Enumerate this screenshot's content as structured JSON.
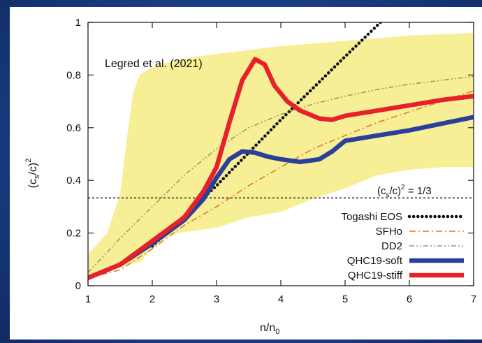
{
  "chart_data": {
    "type": "line",
    "annotation": "Legred et al. (2021)",
    "xlabel": "n/n",
    "xlabel_sub": "0",
    "ylabel_pre": "(c",
    "ylabel_sub": "s",
    "ylabel_post": "/c)",
    "ylabel_sup": "2",
    "xlim": [
      1,
      7
    ],
    "ylim": [
      0,
      1
    ],
    "x_ticks": [
      "1",
      "2",
      "3",
      "4",
      "5",
      "6",
      "7"
    ],
    "y_ticks": [
      "0",
      "0.2",
      "0.4",
      "0.6",
      "0.8",
      "1"
    ],
    "conformal_label_pre": "(c",
    "conformal_label_sub": "s",
    "conformal_label_post": "/c)",
    "conformal_label_sup": "2",
    "conformal_label_tail": " = 1/3",
    "conformal_value": 0.3333,
    "band": {
      "color": "#f7ef96",
      "upper": [
        [
          1.0,
          0.12
        ],
        [
          1.3,
          0.2
        ],
        [
          1.5,
          0.35
        ],
        [
          1.6,
          0.55
        ],
        [
          1.7,
          0.73
        ],
        [
          1.8,
          0.8
        ],
        [
          2.0,
          0.83
        ],
        [
          2.4,
          0.86
        ],
        [
          3.0,
          0.88
        ],
        [
          4.0,
          0.91
        ],
        [
          5.0,
          0.93
        ],
        [
          6.0,
          0.95
        ],
        [
          7.0,
          0.96
        ]
      ],
      "lower": [
        [
          7.0,
          0.45
        ],
        [
          6.5,
          0.45
        ],
        [
          6.0,
          0.44
        ],
        [
          5.5,
          0.42
        ],
        [
          5.0,
          0.37
        ],
        [
          4.5,
          0.33
        ],
        [
          4.0,
          0.28
        ],
        [
          3.5,
          0.26
        ],
        [
          3.0,
          0.22
        ],
        [
          2.7,
          0.21
        ],
        [
          2.4,
          0.2
        ],
        [
          2.2,
          0.18
        ],
        [
          2.0,
          0.14
        ],
        [
          1.8,
          0.09
        ],
        [
          1.5,
          0.07
        ],
        [
          1.3,
          0.05
        ],
        [
          1.0,
          0.03
        ]
      ]
    },
    "series": [
      {
        "name": "Togashi EOS",
        "color": "#111111",
        "style": "dotted",
        "points": [
          [
            2.0,
            0.15
          ],
          [
            3.0,
            0.38
          ],
          [
            4.0,
            0.63
          ],
          [
            5.0,
            0.87
          ],
          [
            5.55,
            1.0
          ]
        ]
      },
      {
        "name": "SFHo",
        "color": "#e07a2a",
        "style": "dashdot",
        "points": [
          [
            1.0,
            0.03
          ],
          [
            1.5,
            0.06
          ],
          [
            2.0,
            0.14
          ],
          [
            2.5,
            0.23
          ],
          [
            3.0,
            0.3
          ],
          [
            3.5,
            0.38
          ],
          [
            4.0,
            0.45
          ],
          [
            4.5,
            0.52
          ],
          [
            5.0,
            0.57
          ],
          [
            5.5,
            0.62
          ],
          [
            6.0,
            0.66
          ],
          [
            6.5,
            0.7
          ],
          [
            7.0,
            0.74
          ]
        ]
      },
      {
        "name": "DD2",
        "color": "#9b9a6a",
        "style": "dashdotdot",
        "points": [
          [
            1.0,
            0.05
          ],
          [
            1.5,
            0.18
          ],
          [
            2.0,
            0.3
          ],
          [
            2.5,
            0.42
          ],
          [
            3.0,
            0.52
          ],
          [
            3.5,
            0.6
          ],
          [
            4.0,
            0.65
          ],
          [
            4.5,
            0.69
          ],
          [
            5.0,
            0.72
          ],
          [
            5.5,
            0.745
          ],
          [
            6.0,
            0.765
          ],
          [
            6.5,
            0.78
          ],
          [
            7.0,
            0.795
          ]
        ]
      },
      {
        "name": "QHC19-soft",
        "color": "#2b3f9a",
        "style": "solid",
        "points": [
          [
            1.0,
            0.03
          ],
          [
            1.5,
            0.08
          ],
          [
            2.0,
            0.16
          ],
          [
            2.5,
            0.25
          ],
          [
            2.8,
            0.33
          ],
          [
            3.0,
            0.41
          ],
          [
            3.2,
            0.48
          ],
          [
            3.4,
            0.51
          ],
          [
            3.6,
            0.505
          ],
          [
            3.8,
            0.49
          ],
          [
            4.0,
            0.48
          ],
          [
            4.3,
            0.47
          ],
          [
            4.6,
            0.48
          ],
          [
            4.8,
            0.51
          ],
          [
            5.0,
            0.55
          ],
          [
            5.5,
            0.57
          ],
          [
            6.0,
            0.59
          ],
          [
            6.5,
            0.615
          ],
          [
            7.0,
            0.64
          ]
        ]
      },
      {
        "name": "QHC19-stiff",
        "color": "#e8202a",
        "style": "solid",
        "points": [
          [
            1.0,
            0.03
          ],
          [
            1.5,
            0.08
          ],
          [
            2.0,
            0.17
          ],
          [
            2.5,
            0.26
          ],
          [
            2.8,
            0.36
          ],
          [
            3.0,
            0.45
          ],
          [
            3.2,
            0.62
          ],
          [
            3.4,
            0.78
          ],
          [
            3.6,
            0.86
          ],
          [
            3.75,
            0.84
          ],
          [
            3.9,
            0.76
          ],
          [
            4.1,
            0.7
          ],
          [
            4.3,
            0.665
          ],
          [
            4.6,
            0.635
          ],
          [
            4.8,
            0.63
          ],
          [
            5.0,
            0.645
          ],
          [
            5.5,
            0.665
          ],
          [
            6.0,
            0.685
          ],
          [
            6.5,
            0.705
          ],
          [
            7.0,
            0.72
          ]
        ]
      }
    ],
    "legend_position": "bottom-right"
  }
}
